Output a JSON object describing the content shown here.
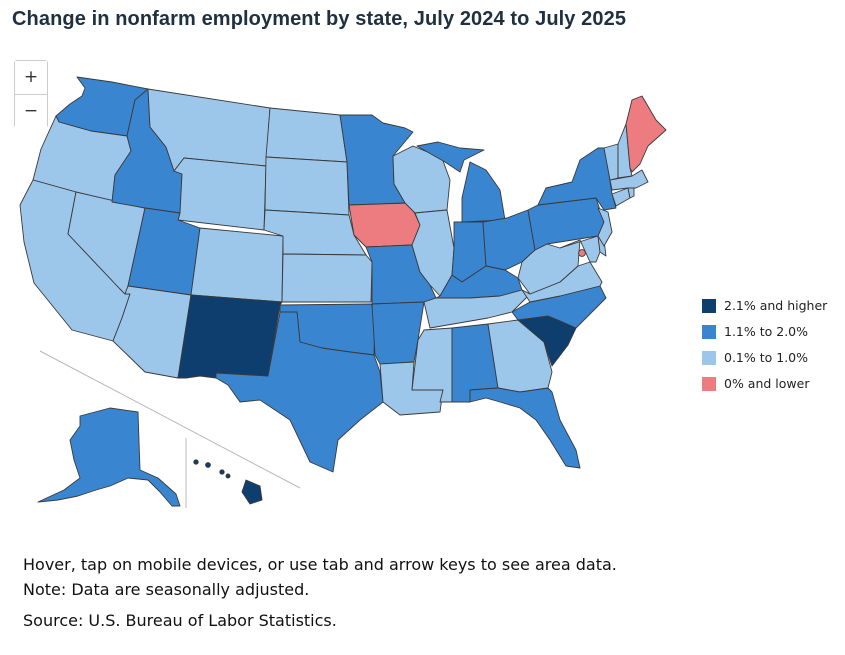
{
  "title": "Change in nonfarm employment by state, July 2024 to July 2025",
  "zoom": {
    "in_label": "+",
    "out_label": "−"
  },
  "legend": [
    {
      "label": "2.1% and higher",
      "color": "#0e3e6e"
    },
    {
      "label": "1.1% to 2.0%",
      "color": "#3a85d0"
    },
    {
      "label": "0.1% to 1.0%",
      "color": "#9dc6eb"
    },
    {
      "label": "0% and lower",
      "color": "#ec7c80"
    }
  ],
  "categories": {
    "WA": 1,
    "OR": 2,
    "CA": 2,
    "NV": 2,
    "ID": 1,
    "MT": 2,
    "WY": 2,
    "UT": 1,
    "AZ": 2,
    "CO": 2,
    "NM": 0,
    "ND": 2,
    "SD": 2,
    "NE": 2,
    "KS": 2,
    "OK": 1,
    "TX": 1,
    "MN": 1,
    "IA": 3,
    "MO": 1,
    "AR": 1,
    "LA": 2,
    "WI": 2,
    "IL": 2,
    "MI": 1,
    "IN": 1,
    "OH": 1,
    "KY": 1,
    "TN": 2,
    "MS": 2,
    "AL": 1,
    "GA": 2,
    "FL": 1,
    "SC": 0,
    "NC": 1,
    "VA": 2,
    "WV": 2,
    "MD": 2,
    "DE": 2,
    "PA": 1,
    "NJ": 2,
    "NY": 1,
    "CT": 2,
    "RI": 2,
    "MA": 2,
    "VT": 2,
    "NH": 2,
    "ME": 3,
    "DC": 3,
    "AK": 1,
    "HI": 0
  },
  "notes": {
    "hover": "Hover, tap on mobile devices, or use tab and arrow keys to see area data.",
    "note": "Note: Data are seasonally adjusted.",
    "source": "Source: U.S. Bureau of Labor Statistics."
  }
}
